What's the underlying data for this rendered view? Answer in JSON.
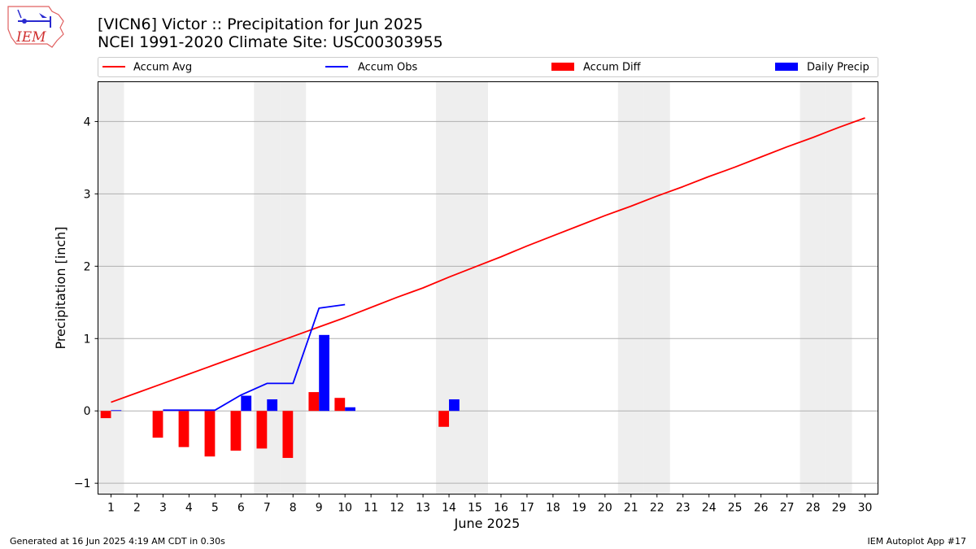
{
  "header": {
    "title_line1": "[VICN6] Victor :: Precipitation for Jun 2025",
    "title_line2": "NCEI 1991-2020 Climate Site: USC00303955",
    "logo_text": "IEM"
  },
  "footer": {
    "generated": "Generated at 16 Jun 2025 4:19 AM CDT in 0.30s",
    "app": "IEM Autoplot App #17"
  },
  "colors": {
    "accum_avg": "#ff0000",
    "accum_obs": "#0000ff",
    "accum_diff": "#ff0000",
    "daily_precip": "#0000ff",
    "weekend_band": "#eeeeee",
    "grid": "#b0b0b0"
  },
  "chart_data": {
    "type": "bar",
    "title": "[VICN6] Victor :: Precipitation for Jun 2025",
    "subtitle": "NCEI 1991-2020 Climate Site: USC00303955",
    "xlabel": "June 2025",
    "ylabel": "Precipitation [inch]",
    "days": [
      1,
      2,
      3,
      4,
      5,
      6,
      7,
      8,
      9,
      10,
      11,
      12,
      13,
      14,
      15,
      16,
      17,
      18,
      19,
      20,
      21,
      22,
      23,
      24,
      25,
      26,
      27,
      28,
      29,
      30
    ],
    "xlim": [
      0.5,
      30.5
    ],
    "ylim": [
      -1.15,
      4.55
    ],
    "yticks": [
      -1,
      0,
      1,
      2,
      3,
      4
    ],
    "grid": "horizontal",
    "legend_position": "top",
    "weekend_days": [
      1,
      7,
      8,
      14,
      15,
      21,
      22,
      28,
      29
    ],
    "legend": [
      "Accum Avg",
      "Accum Obs",
      "Accum Diff",
      "Daily Precip"
    ],
    "series": [
      {
        "name": "Accum Avg",
        "kind": "line",
        "x": [
          1,
          2,
          3,
          4,
          5,
          6,
          7,
          8,
          9,
          10,
          11,
          12,
          13,
          14,
          15,
          16,
          17,
          18,
          19,
          20,
          21,
          22,
          23,
          24,
          25,
          26,
          27,
          28,
          29,
          30
        ],
        "values": [
          0.12,
          0.25,
          0.38,
          0.51,
          0.64,
          0.77,
          0.9,
          1.03,
          1.16,
          1.29,
          1.43,
          1.57,
          1.7,
          1.85,
          1.99,
          2.13,
          2.28,
          2.42,
          2.56,
          2.7,
          2.83,
          2.97,
          3.1,
          3.24,
          3.37,
          3.51,
          3.65,
          3.78,
          3.92,
          4.05
        ]
      },
      {
        "name": "Accum Obs",
        "kind": "line",
        "x": [
          1,
          2,
          3,
          4,
          5,
          6,
          7,
          8,
          9,
          10
        ],
        "values": [
          0.01,
          null,
          0.01,
          0.01,
          0.01,
          0.22,
          0.38,
          0.38,
          1.42,
          1.47
        ]
      },
      {
        "name": "Accum Diff",
        "kind": "bar",
        "x": [
          1,
          3,
          4,
          5,
          6,
          7,
          8,
          9,
          10,
          14
        ],
        "values": [
          -0.1,
          -0.37,
          -0.5,
          -0.63,
          -0.55,
          -0.52,
          -0.65,
          0.26,
          0.18,
          -0.22
        ]
      },
      {
        "name": "Daily Precip",
        "kind": "bar",
        "x": [
          1,
          6,
          7,
          9,
          10,
          14
        ],
        "values": [
          0.01,
          0.21,
          0.16,
          1.05,
          0.05,
          0.16
        ]
      }
    ]
  }
}
